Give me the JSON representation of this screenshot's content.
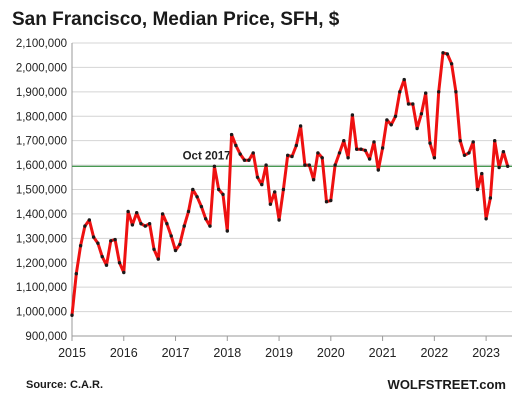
{
  "chart_data": {
    "type": "line",
    "title": "San Francisco, Median Price, SFH, $",
    "xlabel": "",
    "ylabel": "",
    "ylim": [
      900000,
      2100000
    ],
    "xlim": [
      2015,
      2023.5
    ],
    "y_ticks": [
      900000,
      1000000,
      1100000,
      1200000,
      1300000,
      1400000,
      1500000,
      1600000,
      1700000,
      1800000,
      1900000,
      2000000,
      2100000
    ],
    "y_tick_labels": [
      "900,000",
      "1,000,000",
      "1,100,000",
      "1,200,000",
      "1,300,000",
      "1,400,000",
      "1,500,000",
      "1,600,000",
      "1,700,000",
      "1,800,000",
      "1,900,000",
      "2,000,000",
      "2,100,000"
    ],
    "x_ticks": [
      2015,
      2016,
      2017,
      2018,
      2019,
      2020,
      2021,
      2022,
      2023
    ],
    "x_tick_labels": [
      "2015",
      "2016",
      "2017",
      "2018",
      "2019",
      "2020",
      "2021",
      "2022",
      "2023"
    ],
    "grid": "horizontal",
    "line_color": "#ee1111",
    "marker_color": "#1a1a1a",
    "reference_line": {
      "label": "Oct 2017",
      "value": 1595000,
      "color": "#2e8b3a"
    },
    "source": "Source: C.A.R.",
    "brand": "WOLFSTREET.com",
    "series": [
      {
        "x": [
          "2015-01",
          "2015-02",
          "2015-03",
          "2015-04",
          "2015-05",
          "2015-06",
          "2015-07",
          "2015-08",
          "2015-09",
          "2015-10",
          "2015-11",
          "2015-12",
          "2016-01",
          "2016-02",
          "2016-03",
          "2016-04",
          "2016-05",
          "2016-06",
          "2016-07",
          "2016-08",
          "2016-09",
          "2016-10",
          "2016-11",
          "2016-12",
          "2017-01",
          "2017-02",
          "2017-03",
          "2017-04",
          "2017-05",
          "2017-06",
          "2017-07",
          "2017-08",
          "2017-09",
          "2017-10",
          "2017-11",
          "2017-12",
          "2018-01",
          "2018-02",
          "2018-03",
          "2018-04",
          "2018-05",
          "2018-06",
          "2018-07",
          "2018-08",
          "2018-09",
          "2018-10",
          "2018-11",
          "2018-12",
          "2019-01",
          "2019-02",
          "2019-03",
          "2019-04",
          "2019-05",
          "2019-06",
          "2019-07",
          "2019-08",
          "2019-09",
          "2019-10",
          "2019-11",
          "2019-12",
          "2020-01",
          "2020-02",
          "2020-03",
          "2020-04",
          "2020-05",
          "2020-06",
          "2020-07",
          "2020-08",
          "2020-09",
          "2020-10",
          "2020-11",
          "2020-12",
          "2021-01",
          "2021-02",
          "2021-03",
          "2021-04",
          "2021-05",
          "2021-06",
          "2021-07",
          "2021-08",
          "2021-09",
          "2021-10",
          "2021-11",
          "2021-12",
          "2022-01",
          "2022-02",
          "2022-03",
          "2022-04",
          "2022-05",
          "2022-06",
          "2022-07",
          "2022-08",
          "2022-09",
          "2022-10",
          "2022-11",
          "2022-12",
          "2023-01",
          "2023-02",
          "2023-03",
          "2023-04",
          "2023-05",
          "2023-06"
        ],
        "values": [
          985000,
          1155000,
          1270000,
          1350000,
          1375000,
          1305000,
          1280000,
          1225000,
          1190000,
          1290000,
          1295000,
          1200000,
          1160000,
          1410000,
          1355000,
          1405000,
          1360000,
          1350000,
          1360000,
          1255000,
          1215000,
          1400000,
          1360000,
          1310000,
          1250000,
          1275000,
          1350000,
          1410000,
          1500000,
          1470000,
          1430000,
          1380000,
          1350000,
          1595000,
          1500000,
          1480000,
          1330000,
          1725000,
          1680000,
          1645000,
          1620000,
          1620000,
          1650000,
          1550000,
          1520000,
          1600000,
          1440000,
          1490000,
          1375000,
          1500000,
          1640000,
          1635000,
          1680000,
          1760000,
          1600000,
          1600000,
          1540000,
          1650000,
          1630000,
          1450000,
          1455000,
          1600000,
          1650000,
          1700000,
          1630000,
          1805000,
          1665000,
          1665000,
          1660000,
          1625000,
          1695000,
          1580000,
          1670000,
          1785000,
          1765000,
          1800000,
          1900000,
          1950000,
          1850000,
          1850000,
          1750000,
          1810000,
          1895000,
          1690000,
          1630000,
          1900000,
          2060000,
          2055000,
          2015000,
          1900000,
          1700000,
          1640000,
          1650000,
          1695000,
          1500000,
          1565000,
          1380000,
          1465000,
          1700000,
          1590000,
          1655000,
          1595000
        ]
      }
    ]
  }
}
